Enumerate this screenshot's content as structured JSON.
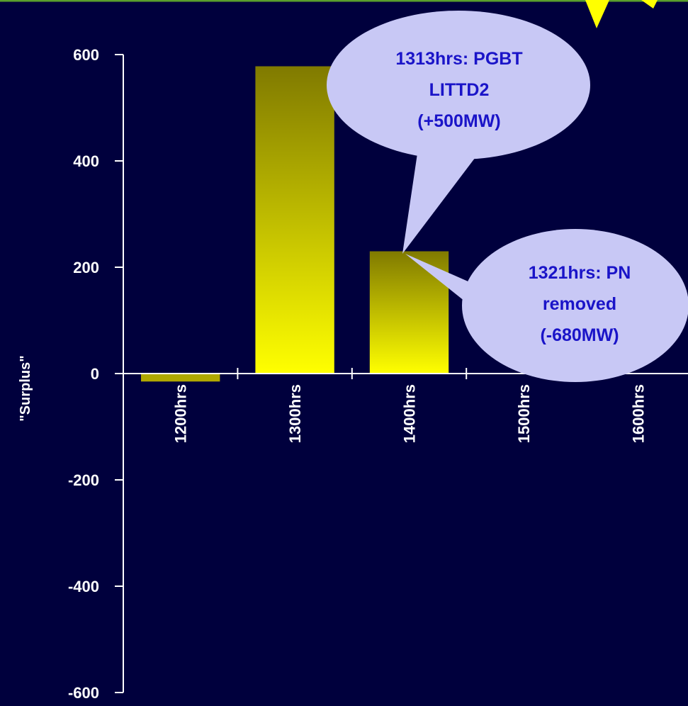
{
  "colors": {
    "background": "#00003d",
    "top_border": "#5aa02c",
    "axis": "#ffffff",
    "bar_top": "#807a00",
    "bar_bottom": "#ffff00",
    "callout_fill": "#c8c8f5",
    "callout_text": "#1a14c8",
    "pointer_yellow": "#ffff00"
  },
  "chart_data": {
    "type": "bar",
    "ylabel": "\"Surplus\"",
    "xlabel": "",
    "title": "",
    "ylim": [
      -600,
      600
    ],
    "yticks": [
      600,
      400,
      200,
      0,
      -200,
      -400,
      -600
    ],
    "y_tick_labels": [
      "600",
      "400",
      "200",
      "0",
      "-200",
      "-400",
      "-600"
    ],
    "categories": [
      "1200hrs",
      "1300hrs",
      "1400hrs",
      "1500hrs",
      "1600hrs"
    ],
    "values": [
      -15,
      578,
      230,
      0,
      0
    ],
    "grid": false,
    "annotations": [
      {
        "id": "a1",
        "lines": [
          "1313hrs: PGBT",
          "LITTD2",
          "(+500MW)"
        ]
      },
      {
        "id": "a2",
        "lines": [
          "1321hrs: PN",
          "removed",
          "(-680MW)"
        ]
      }
    ]
  }
}
